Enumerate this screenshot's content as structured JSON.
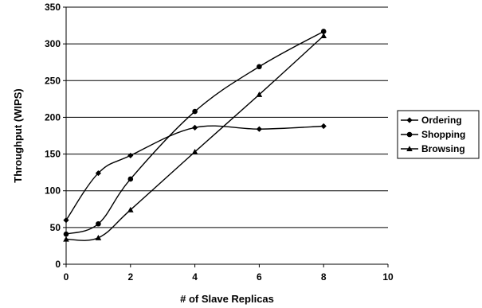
{
  "chart_data": {
    "type": "line",
    "xlabel": "# of Slave Replicas",
    "ylabel": "Throughput (WIPS)",
    "xlim": [
      0,
      10
    ],
    "ylim": [
      0,
      350
    ],
    "xticks": [
      0,
      2,
      4,
      6,
      8,
      10
    ],
    "yticks": [
      0,
      50,
      100,
      150,
      200,
      250,
      300,
      350
    ],
    "grid": "horizontal",
    "legend_position": "right",
    "series": [
      {
        "name": "Ordering",
        "marker": "diamond",
        "x": [
          0,
          1,
          2,
          4,
          6,
          8
        ],
        "values": [
          60,
          124,
          148,
          186,
          184,
          188
        ]
      },
      {
        "name": "Shopping",
        "marker": "circle",
        "x": [
          0,
          1,
          2,
          4,
          6,
          8
        ],
        "values": [
          41,
          55,
          116,
          208,
          269,
          317
        ]
      },
      {
        "name": "Browsing",
        "marker": "triangle",
        "x": [
          0,
          1,
          2,
          4,
          6,
          8
        ],
        "values": [
          34,
          36,
          74,
          153,
          231,
          311
        ]
      }
    ]
  }
}
